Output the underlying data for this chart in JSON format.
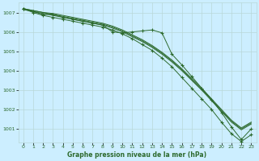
{
  "title": "Graphe pression niveau de la mer (hPa)",
  "background_color": "#cceeff",
  "grid_color": "#b8d8d8",
  "line_color": "#2d6a2d",
  "xlim": [
    -0.5,
    23.5
  ],
  "ylim": [
    1000.3,
    1007.5
  ],
  "yticks": [
    1001,
    1002,
    1003,
    1004,
    1005,
    1006,
    1007
  ],
  "xticks": [
    0,
    1,
    2,
    3,
    4,
    5,
    6,
    7,
    8,
    9,
    10,
    11,
    12,
    13,
    14,
    15,
    16,
    17,
    18,
    19,
    20,
    21,
    22,
    23
  ],
  "series_smooth1": [
    1007.2,
    1007.1,
    1007.0,
    1006.95,
    1006.85,
    1006.75,
    1006.65,
    1006.55,
    1006.45,
    1006.3,
    1006.1,
    1005.85,
    1005.6,
    1005.3,
    1004.95,
    1004.55,
    1004.1,
    1003.6,
    1003.1,
    1002.55,
    1002.0,
    1001.45,
    1001.05,
    1001.35
  ],
  "series_smooth2": [
    1007.2,
    1007.1,
    1007.0,
    1006.9,
    1006.8,
    1006.7,
    1006.6,
    1006.5,
    1006.4,
    1006.25,
    1006.05,
    1005.8,
    1005.55,
    1005.25,
    1004.9,
    1004.5,
    1004.05,
    1003.55,
    1003.05,
    1002.5,
    1001.95,
    1001.4,
    1001.0,
    1001.3
  ],
  "series_smooth3": [
    1007.15,
    1007.05,
    1006.95,
    1006.85,
    1006.75,
    1006.65,
    1006.55,
    1006.45,
    1006.35,
    1006.2,
    1006.0,
    1005.75,
    1005.5,
    1005.2,
    1004.85,
    1004.45,
    1004.0,
    1003.5,
    1003.0,
    1002.45,
    1001.9,
    1001.35,
    1000.95,
    1001.25
  ],
  "series_marker1": [
    1007.2,
    1007.05,
    1006.9,
    1006.9,
    1006.75,
    1006.65,
    1006.55,
    1006.45,
    1006.35,
    1006.0,
    1005.95,
    1006.0,
    1006.05,
    1006.1,
    1005.95,
    1004.85,
    1004.3,
    1003.7,
    1003.1,
    1002.5,
    1001.85,
    1001.1,
    1000.45,
    1001.0
  ],
  "series_marker2": [
    1007.2,
    1007.0,
    1006.85,
    1006.75,
    1006.65,
    1006.55,
    1006.45,
    1006.35,
    1006.25,
    1006.1,
    1005.9,
    1005.65,
    1005.35,
    1005.05,
    1004.65,
    1004.2,
    1003.65,
    1003.1,
    1002.55,
    1002.0,
    1001.35,
    1000.75,
    1000.35,
    1000.7
  ]
}
